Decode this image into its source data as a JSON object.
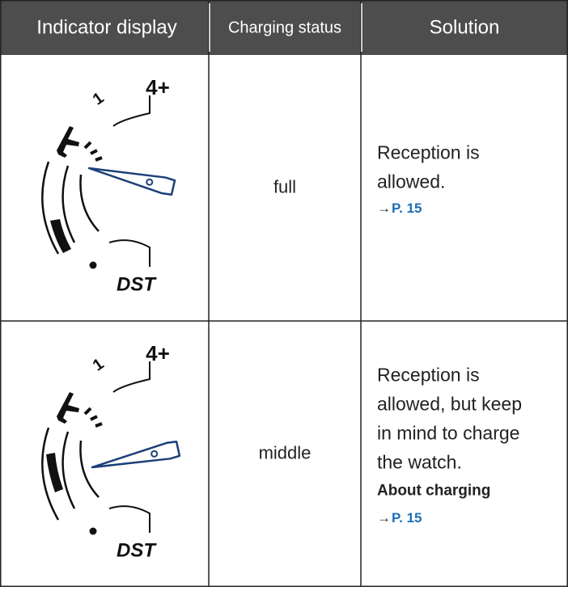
{
  "header": {
    "columns": [
      "Indicator display",
      "Charging status",
      "Solution"
    ]
  },
  "rows": [
    {
      "indicator": {
        "top": "4+",
        "mid": "1",
        "bottom": "DST"
      },
      "status": "full",
      "solution": [
        "Reception is",
        "allowed."
      ],
      "link": {
        "arrow": "→",
        "page": "P. 15"
      }
    },
    {
      "indicator": {
        "top": "4+",
        "mid": "1",
        "bottom": "DST"
      },
      "status": "middle",
      "solution": [
        "Reception is",
        "allowed, but keep",
        "in mind to charge",
        "the watch."
      ],
      "note": "About charging",
      "link": {
        "arrow": "→",
        "page": "P. 15"
      }
    }
  ]
}
